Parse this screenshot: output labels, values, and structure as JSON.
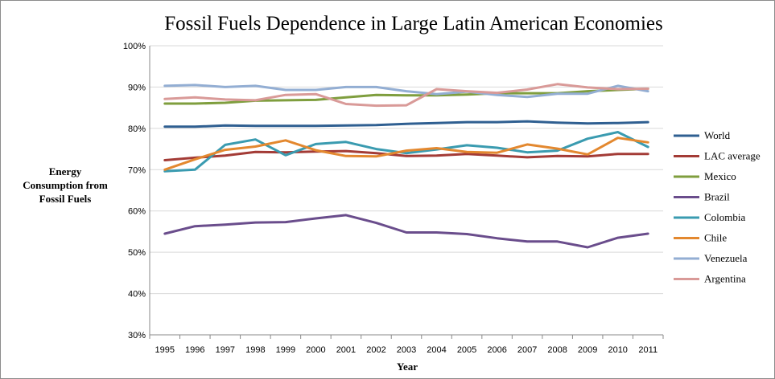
{
  "chart_data": {
    "type": "line",
    "title": "Fossil Fuels Dependence in Large Latin American Economies",
    "xlabel": "Year",
    "ylabel_lines": [
      "Energy",
      "Consumption from",
      "Fossil Fuels"
    ],
    "x": [
      "1995",
      "1996",
      "1997",
      "1998",
      "1999",
      "2000",
      "2001",
      "2002",
      "2003",
      "2004",
      "2005",
      "2006",
      "2007",
      "2008",
      "2009",
      "2010",
      "2011"
    ],
    "ylim": [
      30,
      100
    ],
    "yticks": [
      30,
      40,
      50,
      60,
      70,
      80,
      90,
      100
    ],
    "ytick_labels": [
      "30%",
      "40%",
      "50%",
      "60%",
      "70%",
      "80%",
      "90%",
      "100%"
    ],
    "grid": "horizontal",
    "legend_position": "right",
    "series": [
      {
        "name": "World",
        "color": "#2f5f91",
        "values": [
          80.4,
          80.4,
          80.7,
          80.6,
          80.6,
          80.6,
          80.7,
          80.8,
          81.1,
          81.3,
          81.5,
          81.5,
          81.7,
          81.4,
          81.2,
          81.3,
          81.5
        ]
      },
      {
        "name": "LAC average",
        "color": "#a33b36",
        "values": [
          72.3,
          72.9,
          73.4,
          74.3,
          74.2,
          74.4,
          74.5,
          74.0,
          73.3,
          73.4,
          73.8,
          73.4,
          73.0,
          73.3,
          73.2,
          73.8,
          73.8
        ]
      },
      {
        "name": "Mexico",
        "color": "#7f9e3e",
        "values": [
          86.0,
          86.0,
          86.2,
          86.7,
          86.8,
          86.9,
          87.5,
          88.1,
          88.0,
          88.0,
          88.2,
          88.5,
          88.5,
          88.5,
          89.0,
          89.3,
          89.6
        ]
      },
      {
        "name": "Brazil",
        "color": "#6a4d8c",
        "values": [
          54.5,
          56.3,
          56.7,
          57.2,
          57.3,
          58.2,
          59.0,
          57.1,
          54.8,
          54.8,
          54.4,
          53.4,
          52.6,
          52.6,
          51.2,
          53.5,
          54.5
        ]
      },
      {
        "name": "Colombia",
        "color": "#3a9bb0",
        "values": [
          69.6,
          70.0,
          76.0,
          77.3,
          73.5,
          76.2,
          76.7,
          75.0,
          74.0,
          74.9,
          75.9,
          75.3,
          74.2,
          74.6,
          77.5,
          79.1,
          75.5
        ]
      },
      {
        "name": "Chile",
        "color": "#e3882f",
        "values": [
          70.0,
          72.5,
          74.8,
          75.6,
          77.1,
          74.7,
          73.3,
          73.2,
          74.6,
          75.2,
          74.3,
          74.1,
          76.1,
          75.1,
          73.7,
          77.7,
          76.6
        ]
      },
      {
        "name": "Venezuela",
        "color": "#93aed3",
        "values": [
          90.3,
          90.5,
          90.0,
          90.3,
          89.3,
          89.3,
          90.0,
          90.0,
          89.0,
          88.3,
          88.9,
          88.1,
          87.6,
          88.4,
          88.4,
          90.3,
          89.0
        ]
      },
      {
        "name": "Argentina",
        "color": "#d99a98",
        "values": [
          87.1,
          87.5,
          87.0,
          86.8,
          88.1,
          88.3,
          85.9,
          85.5,
          85.6,
          89.5,
          89.0,
          88.6,
          89.4,
          90.7,
          89.9,
          89.5,
          89.6
        ]
      }
    ]
  }
}
